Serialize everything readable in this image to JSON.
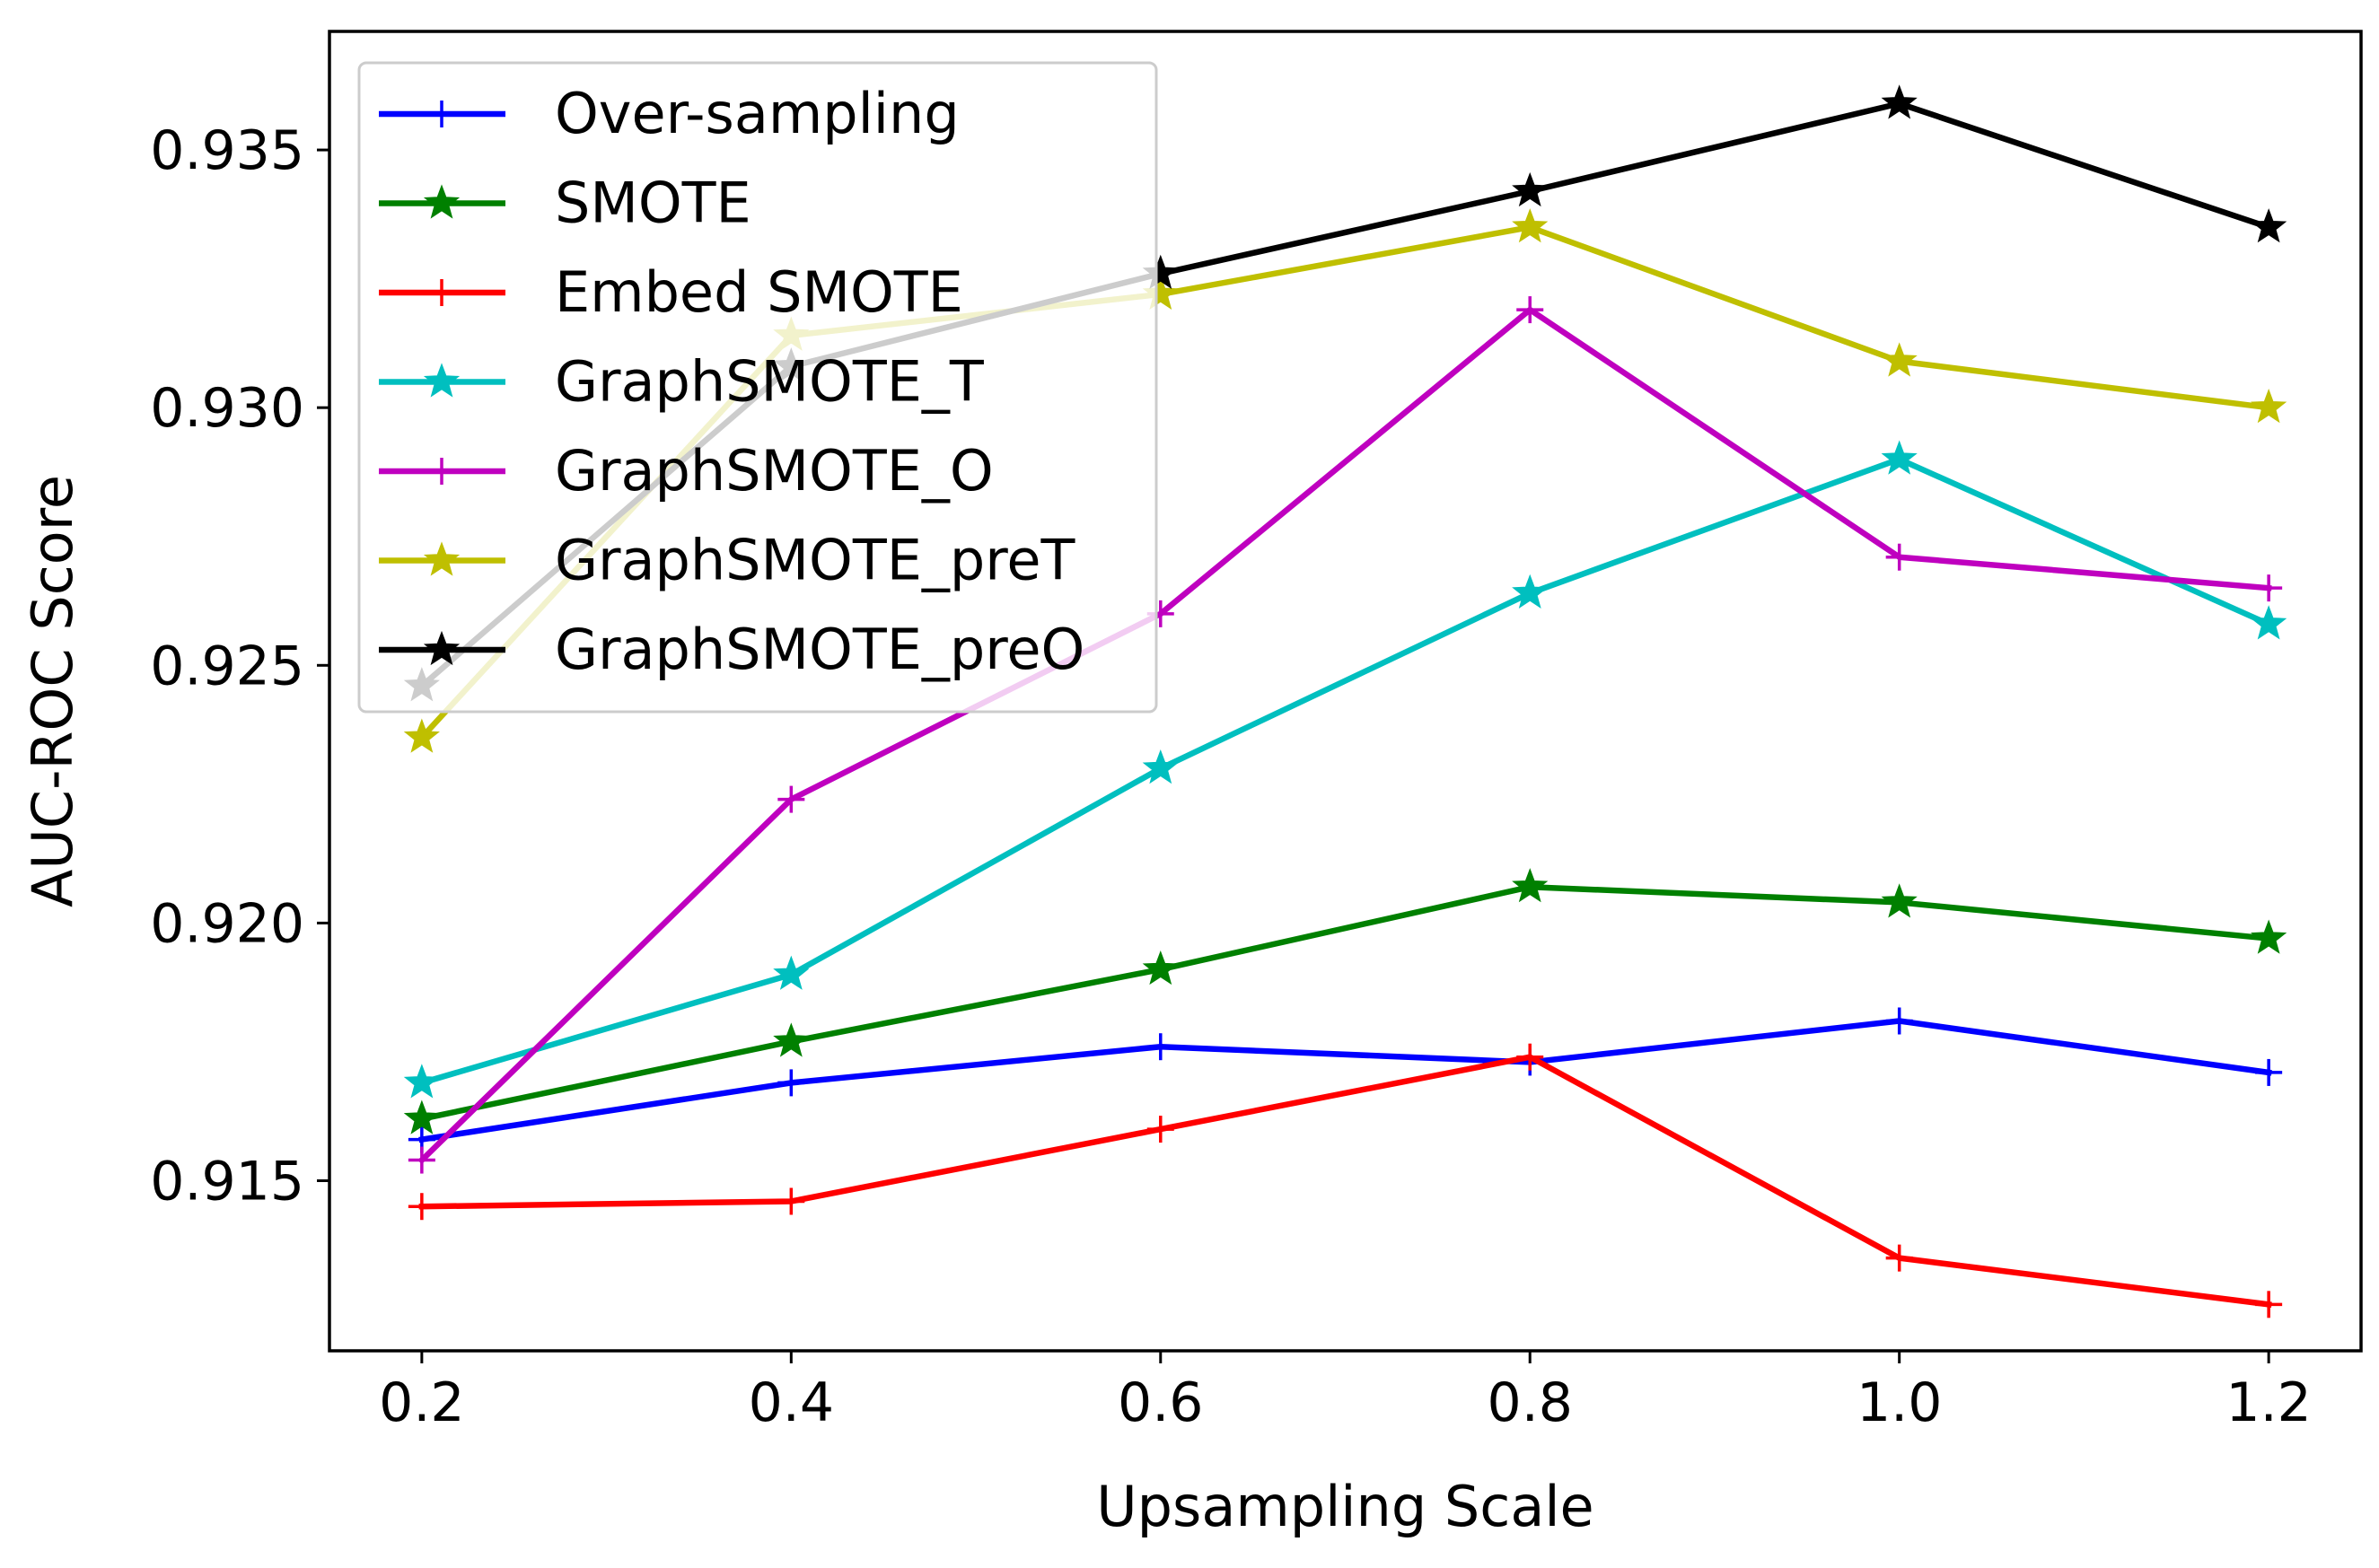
{
  "chart_data": {
    "type": "line",
    "title": "",
    "xlabel": "Upsampling Scale",
    "ylabel": "AUC-ROC Score",
    "x": [
      0.2,
      0.4,
      0.6,
      0.8,
      1.0,
      1.2
    ],
    "xticks": [
      "0.2",
      "0.4",
      "0.6",
      "0.8",
      "1.0",
      "1.2"
    ],
    "yticks": [
      "0.915",
      "0.920",
      "0.925",
      "0.930",
      "0.935"
    ],
    "ytick_values": [
      0.915,
      0.92,
      0.925,
      0.93,
      0.935
    ],
    "xlim": [
      0.15,
      1.25
    ],
    "ylim": [
      0.9117,
      0.9373
    ],
    "grid": false,
    "legend_location": "upper-left",
    "series": [
      {
        "name": "Over-sampling",
        "color": "#0000ff",
        "marker": "plus",
        "values": [
          0.9158,
          0.9169,
          0.9176,
          0.9173,
          0.9181,
          0.9171
        ]
      },
      {
        "name": "SMOTE",
        "color": "#008000",
        "marker": "star",
        "values": [
          0.9162,
          0.9177,
          0.9191,
          0.9207,
          0.9204,
          0.9197
        ]
      },
      {
        "name": "Embed SMOTE",
        "color": "#ff0000",
        "marker": "plus",
        "values": [
          0.9145,
          0.9146,
          0.916,
          0.9174,
          0.9135,
          0.9126
        ]
      },
      {
        "name": "GraphSMOTE_T",
        "color": "#00bfbf",
        "marker": "star",
        "values": [
          0.9169,
          0.919,
          0.923,
          0.9264,
          0.929,
          0.9258
        ]
      },
      {
        "name": "GraphSMOTE_O",
        "color": "#bf00bf",
        "marker": "plus",
        "values": [
          0.9154,
          0.9224,
          0.926,
          0.9319,
          0.9271,
          0.9265
        ]
      },
      {
        "name": "GraphSMOTE_preT",
        "color": "#bfbf00",
        "marker": "star",
        "values": [
          0.9236,
          0.9314,
          0.9322,
          0.9335,
          0.9309,
          0.93
        ]
      },
      {
        "name": "GraphSMOTE_preO",
        "color": "#000000",
        "marker": "star",
        "values": [
          0.9246,
          0.9308,
          0.9326,
          0.9342,
          0.9359,
          0.9335
        ]
      }
    ]
  }
}
